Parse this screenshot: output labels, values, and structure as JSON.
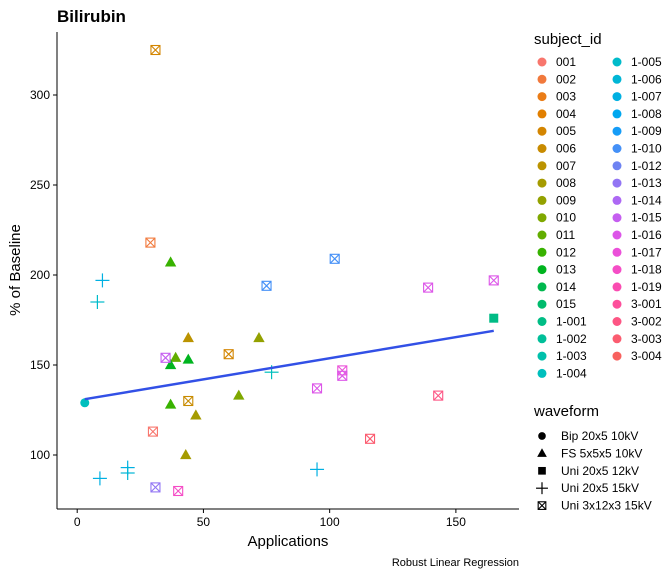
{
  "chart_data": {
    "type": "scatter",
    "title": "Bilirubin",
    "xlabel": "Applications",
    "ylabel": "% of Baseline",
    "caption": "Robust Linear Regression",
    "xlim": [
      -8,
      175
    ],
    "ylim": [
      70,
      335
    ],
    "x_ticks": [
      0,
      50,
      100,
      150
    ],
    "y_ticks": [
      100,
      150,
      200,
      250,
      300
    ],
    "grid": false,
    "legend_placement": "right",
    "regression_line": {
      "color": "#3250e6",
      "x": [
        3,
        165
      ],
      "y": [
        131,
        169
      ]
    },
    "subject_legend": {
      "title": "subject_id",
      "items": [
        {
          "id": "001",
          "color": "#f8766d"
        },
        {
          "id": "002",
          "color": "#f1793c"
        },
        {
          "id": "003",
          "color": "#ea7c16"
        },
        {
          "id": "004",
          "color": "#e17f00"
        },
        {
          "id": "005",
          "color": "#d38500"
        },
        {
          "id": "006",
          "color": "#c88b00"
        },
        {
          "id": "007",
          "color": "#bb9300"
        },
        {
          "id": "008",
          "color": "#a59b00"
        },
        {
          "id": "009",
          "color": "#93a100"
        },
        {
          "id": "010",
          "color": "#7fa800"
        },
        {
          "id": "011",
          "color": "#62ad00"
        },
        {
          "id": "012",
          "color": "#38b200"
        },
        {
          "id": "013",
          "color": "#00b41f"
        },
        {
          "id": "014",
          "color": "#00b84e"
        },
        {
          "id": "015",
          "color": "#00bb6d"
        },
        {
          "id": "1-001",
          "color": "#00bd85"
        },
        {
          "id": "1-002",
          "color": "#00bf99"
        },
        {
          "id": "1-003",
          "color": "#00c0ab"
        },
        {
          "id": "1-004",
          "color": "#00bfbd"
        },
        {
          "id": "1-005",
          "color": "#00bbca"
        },
        {
          "id": "1-006",
          "color": "#00b6d6"
        },
        {
          "id": "1-007",
          "color": "#00b0e2"
        },
        {
          "id": "1-008",
          "color": "#00a7ef"
        },
        {
          "id": "1-009",
          "color": "#159cf7"
        },
        {
          "id": "1-010",
          "color": "#4490f7"
        },
        {
          "id": "1-012",
          "color": "#6e83f2"
        },
        {
          "id": "1-013",
          "color": "#9275f4"
        },
        {
          "id": "1-014",
          "color": "#ad68f4"
        },
        {
          "id": "1-015",
          "color": "#c55ef0"
        },
        {
          "id": "1-016",
          "color": "#dc55e8"
        },
        {
          "id": "1-017",
          "color": "#eb50d9"
        },
        {
          "id": "1-018",
          "color": "#f54dc6"
        },
        {
          "id": "1-019",
          "color": "#fa4cb1"
        },
        {
          "id": "3-001",
          "color": "#fd4f9b"
        },
        {
          "id": "3-002",
          "color": "#fd5584"
        },
        {
          "id": "3-003",
          "color": "#fb5c70"
        },
        {
          "id": "3-004",
          "color": "#f8615e"
        }
      ]
    },
    "waveform_legend": {
      "title": "waveform",
      "items": [
        {
          "label": "Bip 20x5 10kV",
          "shape": "circle"
        },
        {
          "label": "FS 5x5x5 10kV",
          "shape": "triangle"
        },
        {
          "label": "Uni 20x5 12kV",
          "shape": "square"
        },
        {
          "label": "Uni 20x5 15kV",
          "shape": "plus"
        },
        {
          "label": "Uni 3x12x3 15kV",
          "shape": "boxx"
        }
      ]
    },
    "points": [
      {
        "x": 3,
        "y": 129,
        "shape": "circle",
        "color": "#00bfbd"
      },
      {
        "x": 165,
        "y": 176,
        "shape": "square",
        "color": "#00bb85"
      },
      {
        "x": 37,
        "y": 207,
        "shape": "triangle",
        "color": "#38b200"
      },
      {
        "x": 39,
        "y": 154,
        "shape": "triangle",
        "color": "#62ad00"
      },
      {
        "x": 37,
        "y": 150,
        "shape": "triangle",
        "color": "#00b41f"
      },
      {
        "x": 44,
        "y": 153,
        "shape": "triangle",
        "color": "#00b41f"
      },
      {
        "x": 44,
        "y": 165,
        "shape": "triangle",
        "color": "#bb9300"
      },
      {
        "x": 72,
        "y": 165,
        "shape": "triangle",
        "color": "#93a100"
      },
      {
        "x": 37,
        "y": 128,
        "shape": "triangle",
        "color": "#38b200"
      },
      {
        "x": 47,
        "y": 122,
        "shape": "triangle",
        "color": "#a59b00"
      },
      {
        "x": 64,
        "y": 133,
        "shape": "triangle",
        "color": "#7fa800"
      },
      {
        "x": 43,
        "y": 100,
        "shape": "triangle",
        "color": "#a59b00"
      },
      {
        "x": 10,
        "y": 197,
        "shape": "plus",
        "color": "#00b0e2"
      },
      {
        "x": 8,
        "y": 185,
        "shape": "plus",
        "color": "#00bbca"
      },
      {
        "x": 77,
        "y": 146,
        "shape": "plus",
        "color": "#00bfbd"
      },
      {
        "x": 95,
        "y": 92,
        "shape": "plus",
        "color": "#00b0e2"
      },
      {
        "x": 20,
        "y": 93,
        "shape": "plus",
        "color": "#00b0e2"
      },
      {
        "x": 20,
        "y": 90,
        "shape": "plus",
        "color": "#00b6d6"
      },
      {
        "x": 9,
        "y": 87,
        "shape": "plus",
        "color": "#00b0e2"
      },
      {
        "x": 31,
        "y": 325,
        "shape": "boxx",
        "color": "#d38500"
      },
      {
        "x": 29,
        "y": 218,
        "shape": "boxx",
        "color": "#f1793c"
      },
      {
        "x": 102,
        "y": 209,
        "shape": "boxx",
        "color": "#4490f7"
      },
      {
        "x": 75,
        "y": 194,
        "shape": "boxx",
        "color": "#4490f7"
      },
      {
        "x": 139,
        "y": 193,
        "shape": "boxx",
        "color": "#dc55e8"
      },
      {
        "x": 165,
        "y": 197,
        "shape": "boxx",
        "color": "#dc55e8"
      },
      {
        "x": 35,
        "y": 154,
        "shape": "boxx",
        "color": "#c55ef0"
      },
      {
        "x": 60,
        "y": 156,
        "shape": "boxx",
        "color": "#d38500"
      },
      {
        "x": 44,
        "y": 130,
        "shape": "boxx",
        "color": "#c88b00"
      },
      {
        "x": 30,
        "y": 113,
        "shape": "boxx",
        "color": "#f8766d"
      },
      {
        "x": 105,
        "y": 147,
        "shape": "boxx",
        "color": "#eb50d9"
      },
      {
        "x": 105,
        "y": 144,
        "shape": "boxx",
        "color": "#dc55e8"
      },
      {
        "x": 95,
        "y": 137,
        "shape": "boxx",
        "color": "#dc55e8"
      },
      {
        "x": 143,
        "y": 133,
        "shape": "boxx",
        "color": "#fd5584"
      },
      {
        "x": 116,
        "y": 109,
        "shape": "boxx",
        "color": "#fb5c70"
      },
      {
        "x": 31,
        "y": 82,
        "shape": "boxx",
        "color": "#9275f4"
      },
      {
        "x": 40,
        "y": 80,
        "shape": "boxx",
        "color": "#f54dc6"
      }
    ]
  }
}
